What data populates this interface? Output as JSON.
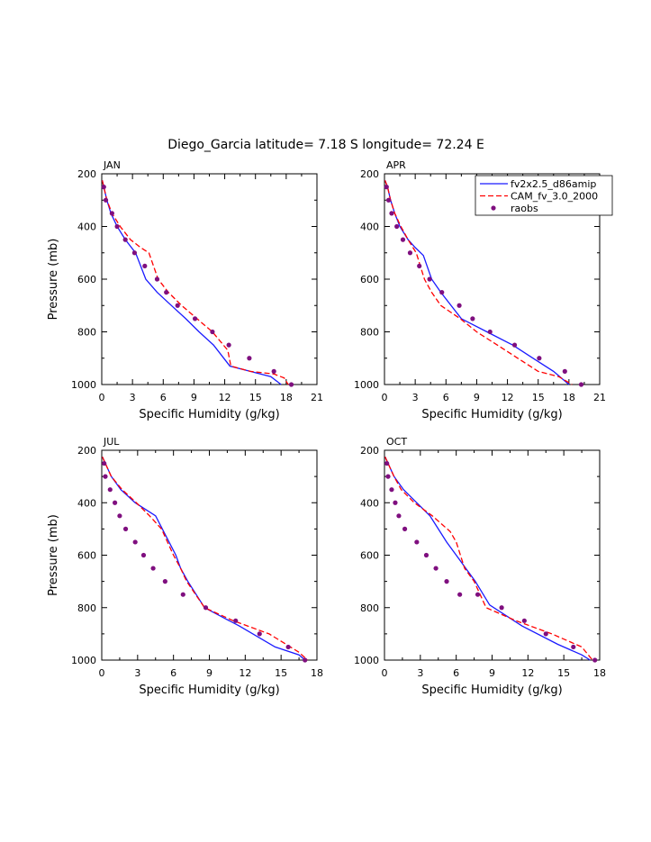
{
  "page_title": "Diego_Garcia  latitude= 7.18 S longitude= 72.24 E",
  "colors": {
    "model1": "#1a1aff",
    "model2": "#ff0000",
    "obs": "#7f0f7f",
    "axis": "#000000"
  },
  "legend": {
    "placement": "top-right of APR panel",
    "entries": [
      {
        "label": "fv2x2.5_d86amip",
        "style": "solid-line",
        "color": "#1a1aff"
      },
      {
        "label": "CAM_fv_3.0_2000",
        "style": "dashed-line",
        "color": "#ff0000"
      },
      {
        "label": "raobs",
        "style": "marker",
        "color": "#7f0f7f"
      }
    ]
  },
  "chart_data": [
    {
      "type": "line",
      "panel": "JAN",
      "title": "JAN",
      "xlabel": "Specific Humidity (g/kg)",
      "ylabel": "Pressure (mb)",
      "xlim": [
        0,
        21
      ],
      "ylim": [
        1000,
        200
      ],
      "y_inverted": true,
      "xticks": [
        "0",
        "3",
        "6",
        "9",
        "12",
        "15",
        "18",
        "21"
      ],
      "yticks": [
        "200",
        "400",
        "600",
        "800",
        "1000"
      ],
      "series": [
        {
          "name": "fv2x2.5_d86amip",
          "x": [
            0.05,
            0.2,
            0.5,
            0.9,
            1.5,
            2.3,
            3.3,
            4.3,
            5.4,
            6.8,
            8.2,
            9.5,
            10.9,
            12.5,
            14.5,
            16.5,
            17.5
          ],
          "y": [
            225,
            250,
            300,
            350,
            400,
            450,
            500,
            600,
            650,
            700,
            750,
            800,
            850,
            930,
            950,
            970,
            1000
          ]
        },
        {
          "name": "CAM_fv_3.0_2000",
          "x": [
            0.05,
            0.2,
            0.5,
            1.0,
            1.8,
            2.8,
            3.8,
            4.6,
            5.5,
            6.5,
            7.8,
            9.3,
            10.8,
            12.3,
            12.6,
            14.5,
            16.8,
            17.8,
            18.2
          ],
          "y": [
            225,
            250,
            300,
            350,
            400,
            450,
            480,
            500,
            600,
            650,
            700,
            750,
            800,
            870,
            930,
            950,
            960,
            975,
            1000
          ]
        },
        {
          "name": "raobs",
          "x": [
            0.2,
            0.4,
            1.0,
            1.5,
            2.3,
            3.2,
            4.2,
            5.4,
            6.3,
            7.4,
            9.1,
            10.8,
            12.4,
            14.4,
            16.8,
            18.5
          ],
          "y": [
            250,
            300,
            350,
            400,
            450,
            500,
            550,
            600,
            650,
            700,
            750,
            800,
            850,
            900,
            950,
            1000
          ]
        }
      ]
    },
    {
      "type": "line",
      "panel": "APR",
      "title": "APR",
      "xlabel": "Specific Humidity (g/kg)",
      "ylabel": "",
      "xlim": [
        0,
        21
      ],
      "ylim": [
        1000,
        200
      ],
      "y_inverted": true,
      "xticks": [
        "0",
        "3",
        "6",
        "9",
        "12",
        "15",
        "18",
        "21"
      ],
      "yticks": [
        "200",
        "400",
        "600",
        "800",
        "1000"
      ],
      "series": [
        {
          "name": "fv2x2.5_d86amip",
          "x": [
            0.05,
            0.3,
            0.6,
            1.0,
            1.5,
            2.3,
            3.0,
            3.8,
            4.6,
            5.5,
            7.5,
            10.0,
            12.5,
            14.5,
            16.5,
            18.0
          ],
          "y": [
            225,
            250,
            300,
            350,
            400,
            450,
            480,
            510,
            600,
            650,
            750,
            800,
            850,
            900,
            950,
            1000
          ]
        },
        {
          "name": "CAM_fv_3.0_2000",
          "x": [
            0.05,
            0.3,
            0.6,
            1.0,
            1.6,
            2.3,
            3.1,
            3.5,
            3.9,
            4.6,
            5.5,
            7.4,
            9.0,
            11.0,
            13.0,
            15.0,
            17.0,
            18.3
          ],
          "y": [
            225,
            250,
            300,
            350,
            400,
            450,
            500,
            550,
            600,
            650,
            700,
            750,
            800,
            850,
            900,
            950,
            970,
            1000
          ]
        },
        {
          "name": "raobs",
          "x": [
            0.2,
            0.4,
            0.7,
            1.2,
            1.8,
            2.5,
            3.4,
            4.4,
            5.6,
            7.3,
            8.6,
            10.3,
            12.7,
            15.1,
            17.6,
            19.2
          ],
          "y": [
            250,
            300,
            350,
            400,
            450,
            500,
            550,
            600,
            650,
            700,
            750,
            800,
            850,
            900,
            950,
            1000
          ]
        }
      ]
    },
    {
      "type": "line",
      "panel": "JUL",
      "title": "JUL",
      "xlabel": "Specific Humidity (g/kg)",
      "ylabel": "Pressure (mb)",
      "xlim": [
        0,
        18
      ],
      "ylim": [
        1000,
        200
      ],
      "y_inverted": true,
      "xticks": [
        "0",
        "3",
        "6",
        "9",
        "12",
        "15",
        "18"
      ],
      "yticks": [
        "200",
        "400",
        "600",
        "800",
        "1000"
      ],
      "series": [
        {
          "name": "fv2x2.5_d86amip",
          "x": [
            0.05,
            0.3,
            0.8,
            1.6,
            2.8,
            4.5,
            6.2,
            6.6,
            7.2,
            8.6,
            11.5,
            14.5,
            16.5,
            17.0
          ],
          "y": [
            225,
            250,
            300,
            350,
            400,
            450,
            600,
            650,
            700,
            800,
            870,
            950,
            980,
            1000
          ]
        },
        {
          "name": "CAM_fv_3.0_2000",
          "x": [
            0.05,
            0.3,
            0.8,
            1.7,
            2.9,
            4.0,
            5.0,
            6.0,
            6.6,
            7.1,
            8.6,
            11.0,
            14.0,
            16.5,
            17.2
          ],
          "y": [
            225,
            250,
            300,
            350,
            400,
            450,
            500,
            600,
            650,
            700,
            800,
            850,
            900,
            970,
            1000
          ]
        },
        {
          "name": "raobs",
          "x": [
            0.2,
            0.3,
            0.7,
            1.1,
            1.5,
            2.0,
            2.8,
            3.5,
            4.3,
            5.3,
            6.8,
            8.7,
            11.2,
            13.2,
            15.6,
            17.0
          ],
          "y": [
            250,
            300,
            350,
            400,
            450,
            500,
            550,
            600,
            650,
            700,
            750,
            800,
            850,
            900,
            950,
            1000
          ]
        }
      ]
    },
    {
      "type": "line",
      "panel": "OCT",
      "title": "OCT",
      "xlabel": "Specific Humidity (g/kg)",
      "ylabel": "",
      "xlim": [
        0,
        18
      ],
      "ylim": [
        1000,
        200
      ],
      "y_inverted": true,
      "xticks": [
        "0",
        "3",
        "6",
        "9",
        "12",
        "15",
        "18"
      ],
      "yticks": [
        "200",
        "400",
        "600",
        "800",
        "1000"
      ],
      "series": [
        {
          "name": "fv2x2.5_d86amip",
          "x": [
            0.05,
            0.3,
            0.8,
            1.6,
            2.7,
            3.8,
            4.5,
            5.2,
            6.0,
            6.8,
            7.6,
            8.8,
            11.5,
            14.5,
            16.5,
            17.2
          ],
          "y": [
            225,
            250,
            300,
            350,
            400,
            450,
            500,
            550,
            600,
            650,
            700,
            790,
            870,
            940,
            980,
            1000
          ]
        },
        {
          "name": "CAM_fv_3.0_2000",
          "x": [
            0.05,
            0.3,
            0.8,
            1.4,
            2.5,
            4.0,
            5.5,
            6.0,
            6.7,
            7.5,
            8.5,
            11.0,
            14.0,
            16.5,
            17.4
          ],
          "y": [
            225,
            250,
            300,
            350,
            400,
            450,
            510,
            550,
            650,
            700,
            800,
            850,
            900,
            950,
            1000
          ]
        },
        {
          "name": "raobs",
          "x": [
            0.2,
            0.3,
            0.6,
            0.9,
            1.2,
            1.7,
            2.7,
            3.5,
            4.3,
            5.2,
            6.3,
            7.8,
            9.8,
            11.7,
            13.5,
            15.8,
            17.6
          ],
          "y": [
            250,
            300,
            350,
            400,
            450,
            500,
            550,
            600,
            650,
            700,
            750,
            750,
            800,
            850,
            900,
            950,
            1000
          ]
        }
      ]
    }
  ]
}
